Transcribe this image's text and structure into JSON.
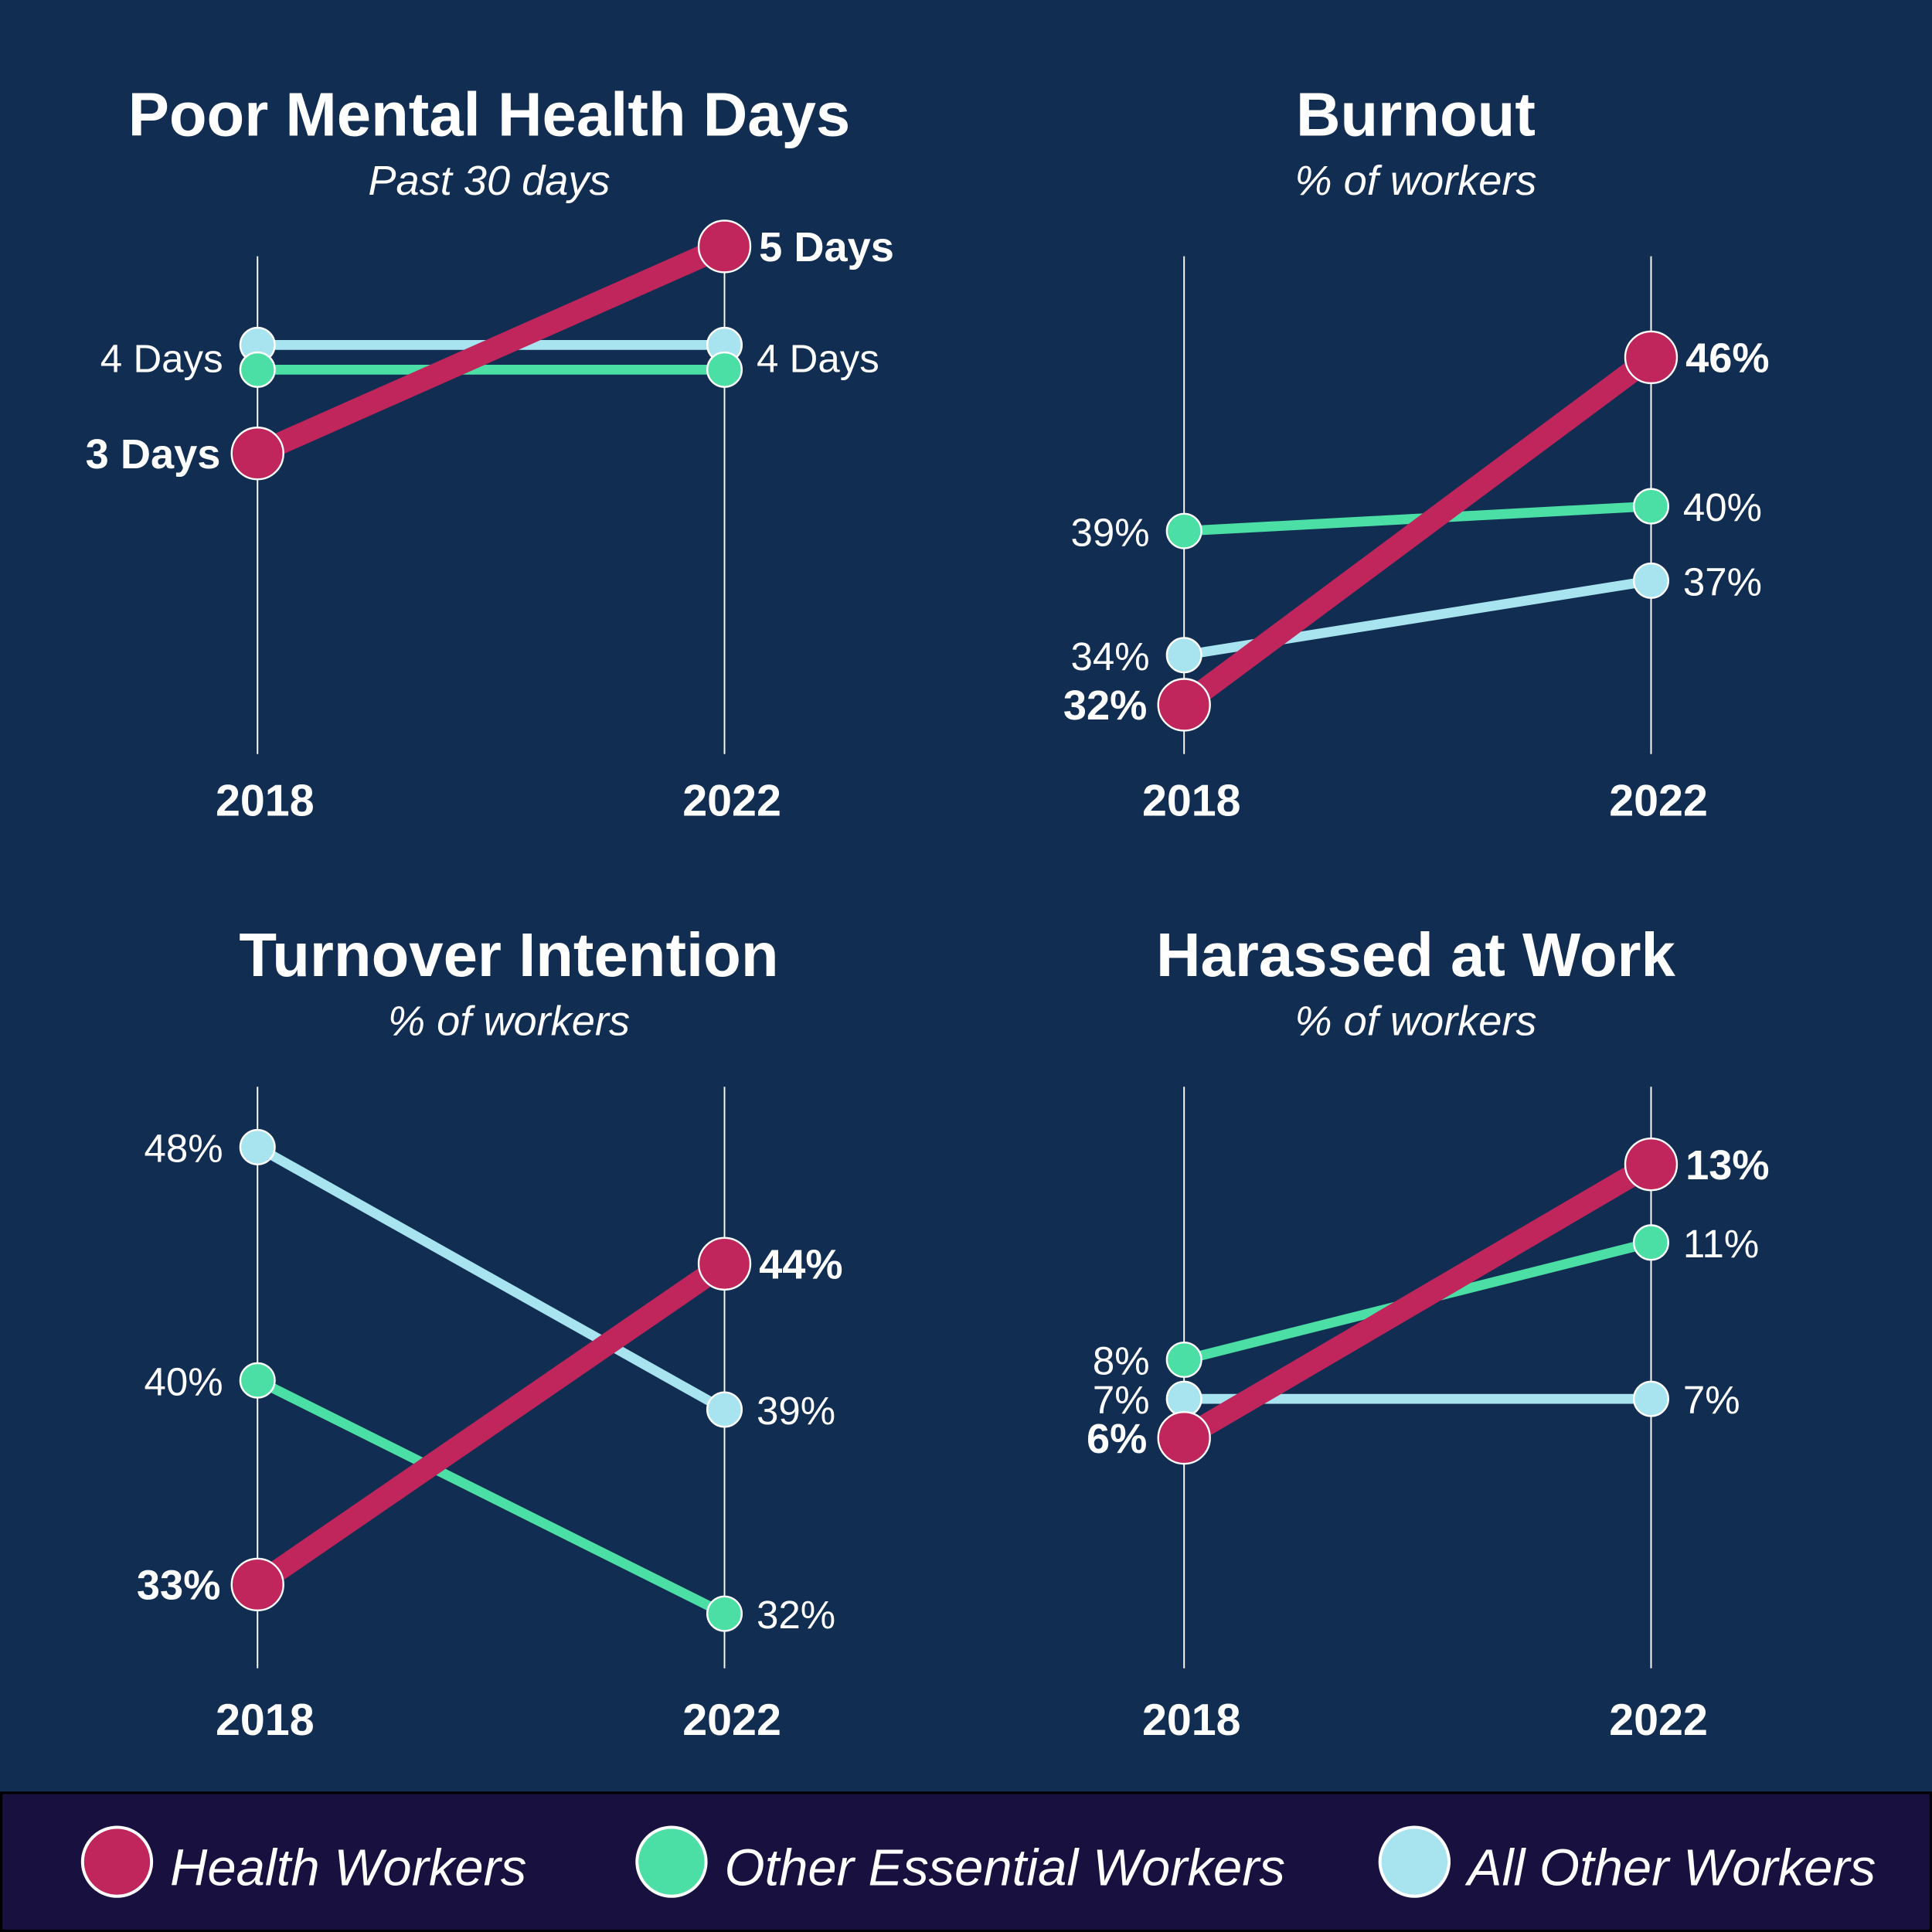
{
  "colors": {
    "background": "#122d52",
    "legend_background": "#181140",
    "health": "#c0255c",
    "essential": "#4bdfa5",
    "other": "#a8e4ef"
  },
  "legend": [
    {
      "label": "Health Workers",
      "color": "#c0255c"
    },
    {
      "label": "Other Essential Workers",
      "color": "#4bdfa5"
    },
    {
      "label": "All Other Workers",
      "color": "#a8e4ef"
    }
  ],
  "chart_data": [
    {
      "type": "line",
      "title": "Poor Mental Health Days",
      "subtitle": "Past 30 days",
      "categories": [
        "2018",
        "2022"
      ],
      "series": [
        {
          "name": "All Other Workers",
          "values": [
            4,
            4
          ],
          "labels": [
            "4 Days",
            "4 Days"
          ]
        },
        {
          "name": "Other Essential Workers",
          "values": [
            4,
            4
          ],
          "labels": [
            null,
            null
          ]
        },
        {
          "name": "Health Workers",
          "values": [
            3,
            5
          ],
          "labels": [
            "3 Days",
            "5 Days"
          ]
        }
      ]
    },
    {
      "type": "line",
      "title": "Burnout",
      "subtitle": "% of workers",
      "categories": [
        "2018",
        "2022"
      ],
      "series": [
        {
          "name": "Other Essential Workers",
          "values": [
            39,
            40
          ],
          "labels": [
            "39%",
            "40%"
          ]
        },
        {
          "name": "All Other Workers",
          "values": [
            34,
            37
          ],
          "labels": [
            "34%",
            "37%"
          ]
        },
        {
          "name": "Health Workers",
          "values": [
            32,
            46
          ],
          "labels": [
            "32%",
            "46%"
          ]
        }
      ]
    },
    {
      "type": "line",
      "title": "Turnover Intention",
      "subtitle": "% of workers",
      "categories": [
        "2018",
        "2022"
      ],
      "series": [
        {
          "name": "All Other Workers",
          "values": [
            48,
            39
          ],
          "labels": [
            "48%",
            "39%"
          ]
        },
        {
          "name": "Other Essential Workers",
          "values": [
            40,
            32
          ],
          "labels": [
            "40%",
            "32%"
          ]
        },
        {
          "name": "Health Workers",
          "values": [
            33,
            44
          ],
          "labels": [
            "33%",
            "44%"
          ]
        }
      ]
    },
    {
      "type": "line",
      "title": "Harassed at Work",
      "subtitle": "% of workers",
      "categories": [
        "2018",
        "2022"
      ],
      "series": [
        {
          "name": "Other Essential Workers",
          "values": [
            8,
            11
          ],
          "labels": [
            "8%",
            "11%"
          ]
        },
        {
          "name": "All Other Workers",
          "values": [
            7,
            7
          ],
          "labels": [
            "7%",
            "7%"
          ]
        },
        {
          "name": "Health Workers",
          "values": [
            6,
            13
          ],
          "labels": [
            "6%",
            "13%"
          ]
        }
      ]
    }
  ]
}
